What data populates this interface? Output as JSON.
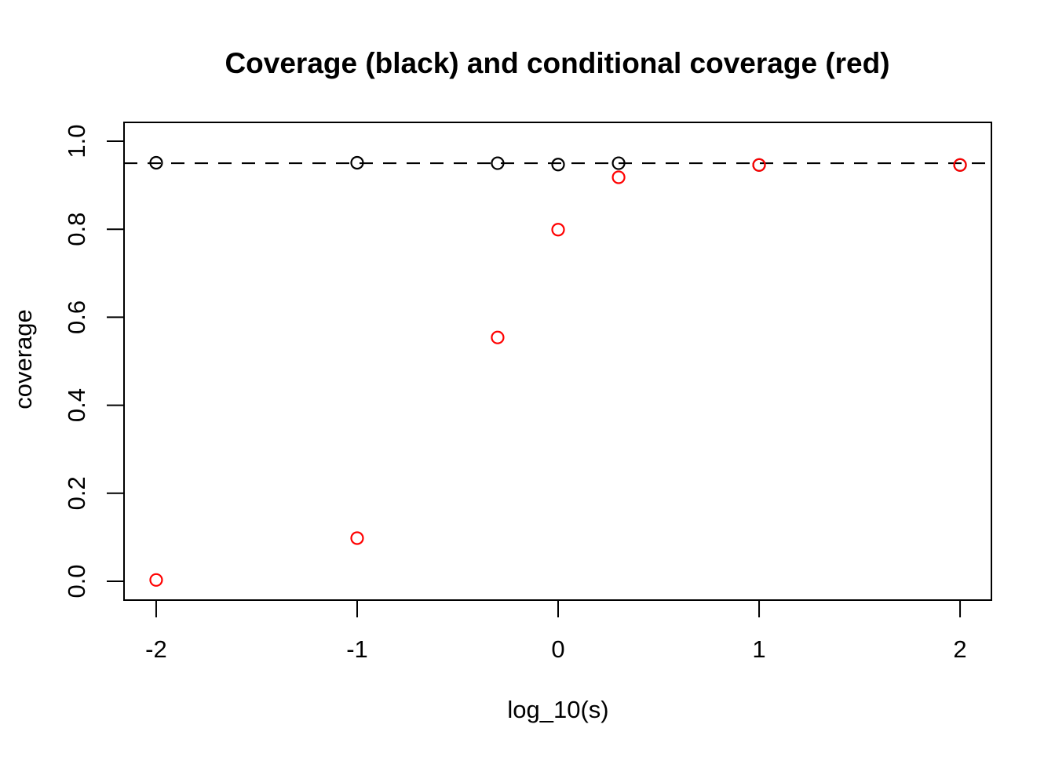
{
  "title": "Coverage (black) and conditional coverage (red)",
  "colors": {
    "background": "#FFFFFF",
    "axis": "#000000",
    "coverage_series": "#000000",
    "conditional_coverage_series": "#FF0000",
    "reference_line": "#000000"
  },
  "chart_data": {
    "type": "scatter",
    "title": "Coverage (black) and conditional coverage (red)",
    "xlabel": "log_10(s)",
    "ylabel": "coverage",
    "xlim": [
      -2.16,
      2.156
    ],
    "ylim": [
      -0.0428,
      1.0428
    ],
    "grid": false,
    "legend": "none (colors explained in title)",
    "x_ticks": [
      {
        "value": -2,
        "label": "-2"
      },
      {
        "value": -1,
        "label": "-1"
      },
      {
        "value": 0,
        "label": "0"
      },
      {
        "value": 1,
        "label": "1"
      },
      {
        "value": 2,
        "label": "2"
      }
    ],
    "y_ticks": [
      {
        "value": 0.0,
        "label": "0.0"
      },
      {
        "value": 0.2,
        "label": "0.2"
      },
      {
        "value": 0.4,
        "label": "0.4"
      },
      {
        "value": 0.6,
        "label": "0.6"
      },
      {
        "value": 0.8,
        "label": "0.8"
      },
      {
        "value": 1.0,
        "label": "1.0"
      }
    ],
    "reference_line": {
      "y": 0.95,
      "style": "dashed",
      "color": "#000000"
    },
    "series": [
      {
        "name": "coverage",
        "color": "#000000",
        "marker": "open-circle",
        "x": [
          -2,
          -1,
          -0.301,
          0,
          0.301,
          1,
          2
        ],
        "y": [
          0.951,
          0.951,
          0.95,
          0.947,
          0.95,
          0.946,
          0.946
        ]
      },
      {
        "name": "conditional coverage",
        "color": "#FF0000",
        "marker": "open-circle",
        "x": [
          -2,
          -1,
          -0.301,
          0,
          0.301,
          1,
          2
        ],
        "y": [
          0.003,
          0.098,
          0.554,
          0.799,
          0.918,
          0.946,
          0.946
        ]
      }
    ]
  }
}
